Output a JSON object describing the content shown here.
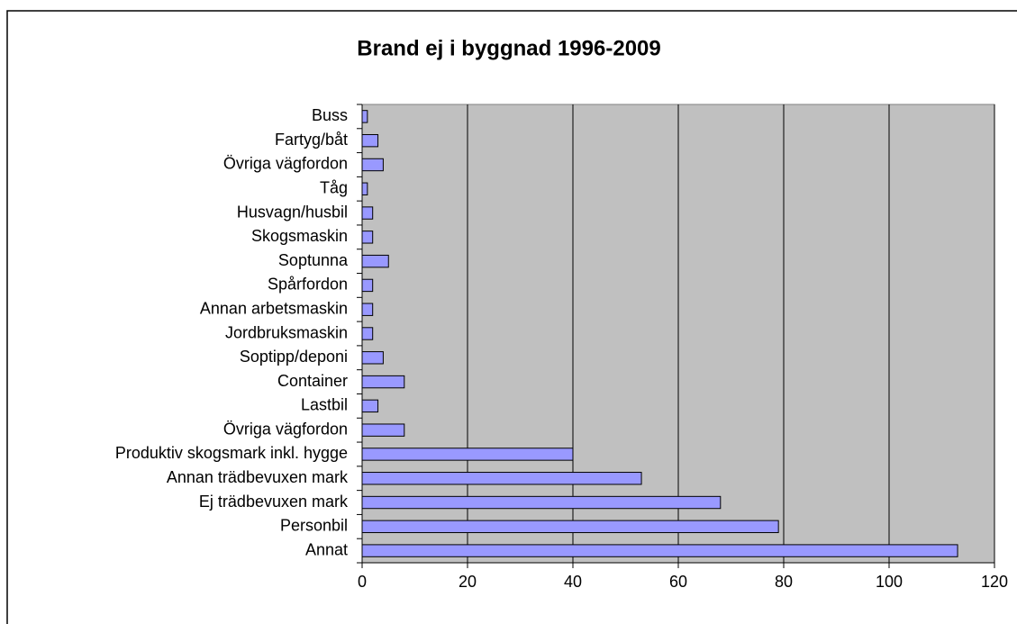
{
  "chart_data": {
    "type": "bar",
    "orientation": "horizontal",
    "title": "Brand ej i byggnad 1996-2009",
    "categories": [
      "Buss",
      "Fartyg/båt",
      "Övriga vägfordon",
      "Tåg",
      "Husvagn/husbil",
      "Skogsmaskin",
      "Soptunna",
      "Spårfordon",
      "Annan arbetsmaskin",
      "Jordbruksmaskin",
      "Soptipp/deponi",
      "Container",
      "Lastbil",
      "Övriga vägfordon",
      "Produktiv skogsmark inkl. hygge",
      "Annan trädbevuxen mark",
      "Ej trädbevuxen mark",
      "Personbil",
      "Annat"
    ],
    "values": [
      1,
      3,
      4,
      1,
      2,
      2,
      5,
      2,
      2,
      2,
      4,
      8,
      3,
      8,
      40,
      53,
      68,
      79,
      113
    ],
    "color": "#9999ff",
    "xlim": [
      0,
      120
    ],
    "xticks": [
      0,
      20,
      40,
      60,
      80,
      100,
      120
    ],
    "grid": true
  }
}
